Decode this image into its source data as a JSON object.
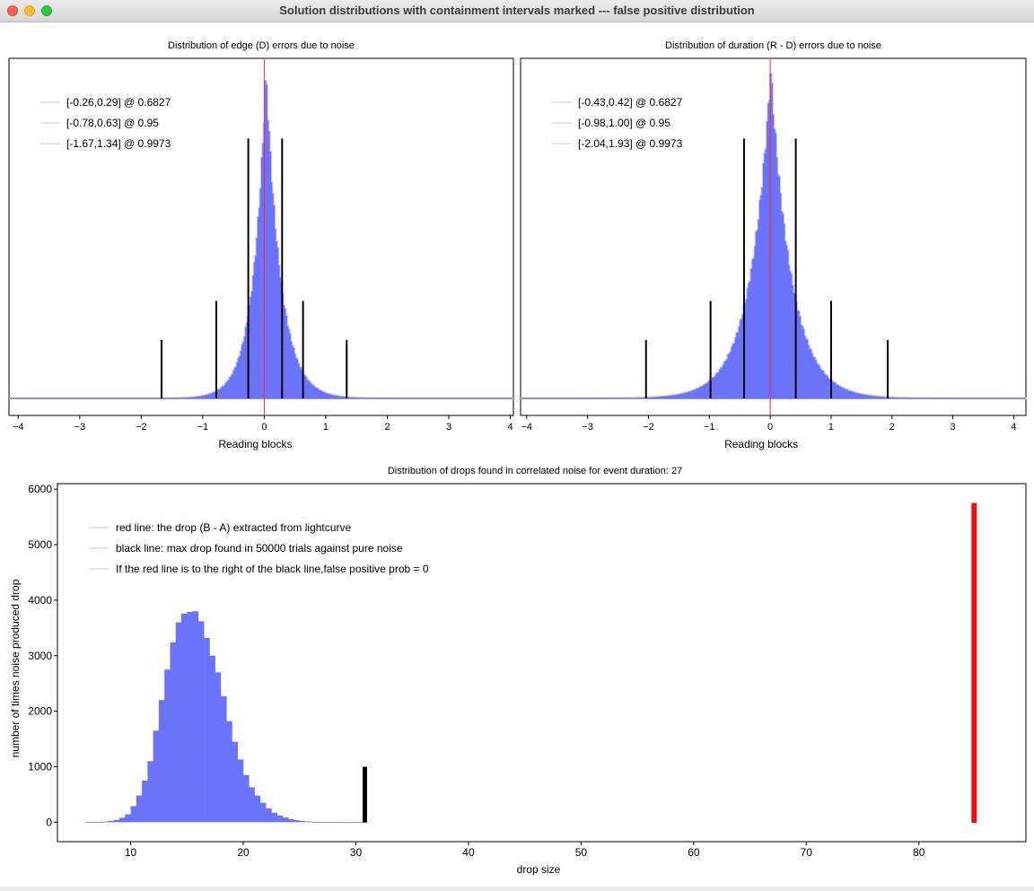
{
  "window": {
    "title": "Solution distributions with containment intervals marked --- false positive distribution"
  },
  "chart_data": [
    {
      "type": "histogram",
      "title": "Distribution of edge (D) errors due to noise",
      "xlabel": "Reading blocks",
      "ylabel": "",
      "xlim": [
        -4.15,
        4.05
      ],
      "xticks": [
        -4,
        -3,
        -2,
        -1,
        0,
        1,
        2,
        3,
        4
      ],
      "y_axis_shown": false,
      "grid": false,
      "legend_placement": "top-left",
      "legend": [
        "[-0.26,0.29] @ 0.6827",
        "[-0.78,0.63] @ 0.95",
        "[-1.67,1.34] @ 0.9973"
      ],
      "center_marker_x": 0,
      "intervals": [
        {
          "confidence": 0.6827,
          "lo": -0.26,
          "hi": 0.29,
          "height": 0.8
        },
        {
          "confidence": 0.95,
          "lo": -0.78,
          "hi": 0.63,
          "height": 0.3
        },
        {
          "confidence": 0.9973,
          "lo": -1.67,
          "hi": 1.34,
          "height": 0.18
        }
      ],
      "distribution": {
        "center": 0.02,
        "sigma_left": 0.26,
        "sigma_right": 0.29,
        "peak": 1.0
      },
      "colors": {
        "bars": "#6b73fb",
        "marker": "#ff2a2a",
        "intervals": "#000000",
        "noise": "#c8c8ee"
      }
    },
    {
      "type": "histogram",
      "title": "Distribution of duration (R - D) errors due to noise",
      "xlabel": "Reading blocks",
      "ylabel": "",
      "xlim": [
        -4.1,
        4.2
      ],
      "xticks": [
        -4,
        -3,
        -2,
        -1,
        0,
        1,
        2,
        3,
        4
      ],
      "y_axis_shown": false,
      "grid": false,
      "legend_placement": "top-left",
      "legend": [
        "[-0.43,0.42] @ 0.6827",
        "[-0.98,1.00] @ 0.95",
        "[-2.04,1.93] @ 0.9973"
      ],
      "center_marker_x": 0,
      "intervals": [
        {
          "confidence": 0.6827,
          "lo": -0.43,
          "hi": 0.42,
          "height": 0.8
        },
        {
          "confidence": 0.95,
          "lo": -0.98,
          "hi": 1.0,
          "height": 0.3
        },
        {
          "confidence": 0.9973,
          "lo": -2.04,
          "hi": 1.93,
          "height": 0.18
        }
      ],
      "distribution": {
        "center": 0.0,
        "sigma_left": 0.42,
        "sigma_right": 0.42,
        "peak": 1.0
      },
      "colors": {
        "bars": "#6b73fb",
        "marker": "#ff2a2a",
        "intervals": "#000000",
        "noise": "#c8c8ee"
      }
    },
    {
      "type": "bar",
      "title": "Distribution of drops found in correlated noise for event duration: 27",
      "xlabel": "drop size",
      "ylabel": "number of times noise produced drop",
      "xlim": [
        3.5,
        89.5
      ],
      "ylim": [
        -350,
        6100
      ],
      "xticks": [
        10,
        20,
        30,
        40,
        50,
        60,
        70,
        80
      ],
      "yticks": [
        0,
        1000,
        2000,
        3000,
        4000,
        5000,
        6000
      ],
      "grid": false,
      "legend_placement": "top-left",
      "legend": [
        "red line: the drop (B - A) extracted from lightcurve",
        "black line: max drop found in 50000 trials against pure noise",
        "If the red line is to the right of the black line,false positive prob = 0"
      ],
      "bin_width": 0.5,
      "bins": [
        {
          "x": 6.0,
          "y": 2
        },
        {
          "x": 6.5,
          "y": 4
        },
        {
          "x": 7.0,
          "y": 7
        },
        {
          "x": 7.5,
          "y": 12
        },
        {
          "x": 8.0,
          "y": 25
        },
        {
          "x": 8.5,
          "y": 40
        },
        {
          "x": 9.0,
          "y": 80
        },
        {
          "x": 9.5,
          "y": 140
        },
        {
          "x": 10.0,
          "y": 290
        },
        {
          "x": 10.5,
          "y": 480
        },
        {
          "x": 11.0,
          "y": 750
        },
        {
          "x": 11.5,
          "y": 1100
        },
        {
          "x": 12.0,
          "y": 1650
        },
        {
          "x": 12.5,
          "y": 2200
        },
        {
          "x": 13.0,
          "y": 2750
        },
        {
          "x": 13.5,
          "y": 3240
        },
        {
          "x": 14.0,
          "y": 3600
        },
        {
          "x": 14.5,
          "y": 3760
        },
        {
          "x": 15.0,
          "y": 3790
        },
        {
          "x": 15.5,
          "y": 3800
        },
        {
          "x": 16.0,
          "y": 3620
        },
        {
          "x": 16.5,
          "y": 3320
        },
        {
          "x": 17.0,
          "y": 3000
        },
        {
          "x": 17.5,
          "y": 2700
        },
        {
          "x": 18.0,
          "y": 2270
        },
        {
          "x": 18.5,
          "y": 1820
        },
        {
          "x": 19.0,
          "y": 1450
        },
        {
          "x": 19.5,
          "y": 1130
        },
        {
          "x": 20.0,
          "y": 850
        },
        {
          "x": 20.5,
          "y": 630
        },
        {
          "x": 21.0,
          "y": 480
        },
        {
          "x": 21.5,
          "y": 350
        },
        {
          "x": 22.0,
          "y": 250
        },
        {
          "x": 22.5,
          "y": 170
        },
        {
          "x": 23.0,
          "y": 120
        },
        {
          "x": 23.5,
          "y": 85
        },
        {
          "x": 24.0,
          "y": 55
        },
        {
          "x": 24.5,
          "y": 35
        },
        {
          "x": 25.0,
          "y": 22
        },
        {
          "x": 25.5,
          "y": 14
        },
        {
          "x": 26.0,
          "y": 9
        },
        {
          "x": 26.5,
          "y": 6
        },
        {
          "x": 27.0,
          "y": 4
        },
        {
          "x": 27.5,
          "y": 3
        },
        {
          "x": 28.0,
          "y": 2
        },
        {
          "x": 28.5,
          "y": 1
        },
        {
          "x": 29.0,
          "y": 1
        },
        {
          "x": 29.5,
          "y": 1
        },
        {
          "x": 30.0,
          "y": 1
        },
        {
          "x": 30.5,
          "y": 1
        }
      ],
      "black_line": {
        "x": 30.8,
        "y0": 0,
        "y1": 1000
      },
      "red_line": {
        "x": 84.9,
        "y0": -10,
        "y1": 5750
      },
      "colors": {
        "bars": "#6b73fb",
        "black_line": "#000000",
        "red_line": "#ee1111"
      }
    }
  ]
}
